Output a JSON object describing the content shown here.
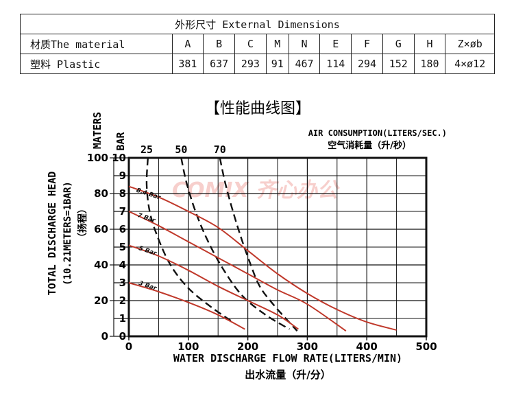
{
  "table": {
    "title": "外形尺寸  External Dimensions",
    "header": [
      "材质The material",
      "A",
      "B",
      "C",
      "M",
      "N",
      "E",
      "F",
      "G",
      "H",
      "Z×øb"
    ],
    "row": [
      "塑料 Plastic",
      "381",
      "637",
      "293",
      "91",
      "467",
      "114",
      "294",
      "152",
      "180",
      "4×ø12"
    ]
  },
  "chart_data": {
    "type": "line",
    "title": "【性能曲线图】",
    "xlabel": "WATER DISCHARGE FLOW RATE(LITERS/MIN)",
    "xlabel_cn": "出水流量（升/分）",
    "ylabel": "TOTAL DISCHARGE HEAD",
    "ylabel_sub": "(10.21METERS=1BAR)",
    "ylabel_cn": "（扬程）",
    "y2label_maters": "MATERS",
    "y2label_bar": "BAR",
    "air_label": "AIR CONSUMPTION(LITERS/SEC.)",
    "air_label_cn": "空气消耗量（升/秒）",
    "xlim": [
      0,
      500
    ],
    "ylim_bar": [
      0,
      10
    ],
    "ylim_maters": [
      0,
      100
    ],
    "x_ticks": [
      "0",
      "100",
      "200",
      "300",
      "400",
      "500"
    ],
    "y_bar_ticks": [
      "0",
      "1",
      "2",
      "3",
      "4",
      "5",
      "6",
      "7",
      "8",
      "9",
      "10"
    ],
    "y_maters_ticks": [
      "0",
      "20",
      "40",
      "60",
      "80",
      "100"
    ],
    "grid": true,
    "watermark": "COMIX 齐心办公",
    "pressure_curves": [
      {
        "name": "8.4 Bar",
        "label_at": [
          12,
          8.1
        ],
        "color": "#c0392b",
        "points": [
          [
            0,
            8.4
          ],
          [
            50,
            7.8
          ],
          [
            100,
            7.0
          ],
          [
            150,
            6.1
          ],
          [
            200,
            4.8
          ],
          [
            250,
            3.5
          ],
          [
            300,
            2.4
          ],
          [
            350,
            1.5
          ],
          [
            400,
            0.8
          ],
          [
            450,
            0.35
          ]
        ]
      },
      {
        "name": "7 Bar",
        "label_at": [
          14,
          6.7
        ],
        "color": "#c0392b",
        "points": [
          [
            0,
            7.0
          ],
          [
            50,
            6.2
          ],
          [
            100,
            5.3
          ],
          [
            150,
            4.4
          ],
          [
            200,
            3.5
          ],
          [
            250,
            2.6
          ],
          [
            300,
            1.8
          ],
          [
            365,
            0.3
          ]
        ]
      },
      {
        "name": "5 Bar",
        "label_at": [
          16,
          4.85
        ],
        "color": "#c0392b",
        "points": [
          [
            0,
            5.1
          ],
          [
            50,
            4.5
          ],
          [
            100,
            3.7
          ],
          [
            150,
            2.8
          ],
          [
            200,
            2.0
          ],
          [
            250,
            1.2
          ],
          [
            285,
            0.4
          ]
        ]
      },
      {
        "name": "3 Bar",
        "label_at": [
          16,
          2.9
        ],
        "color": "#c0392b",
        "points": [
          [
            0,
            3.0
          ],
          [
            50,
            2.5
          ],
          [
            100,
            1.9
          ],
          [
            150,
            1.2
          ],
          [
            195,
            0.4
          ]
        ]
      }
    ],
    "air_curves": [
      {
        "name": "25",
        "label_x": 30,
        "points": [
          [
            32,
            10
          ],
          [
            30,
            8.5
          ],
          [
            35,
            7.0
          ],
          [
            48,
            5.6
          ],
          [
            70,
            4.0
          ],
          [
            100,
            2.7
          ],
          [
            140,
            1.6
          ],
          [
            175,
            0.8
          ]
        ]
      },
      {
        "name": "50",
        "label_x": 88,
        "points": [
          [
            88,
            10
          ],
          [
            97,
            8.6
          ],
          [
            112,
            7.0
          ],
          [
            132,
            5.4
          ],
          [
            158,
            3.8
          ],
          [
            190,
            2.3
          ],
          [
            230,
            1.2
          ],
          [
            270,
            0.4
          ]
        ]
      },
      {
        "name": "70",
        "label_x": 153,
        "points": [
          [
            153,
            10
          ],
          [
            162,
            8.6
          ],
          [
            175,
            7.0
          ],
          [
            190,
            5.4
          ],
          [
            205,
            4.0
          ],
          [
            220,
            2.8
          ],
          [
            245,
            1.7
          ],
          [
            283,
            0.3
          ]
        ]
      }
    ]
  }
}
